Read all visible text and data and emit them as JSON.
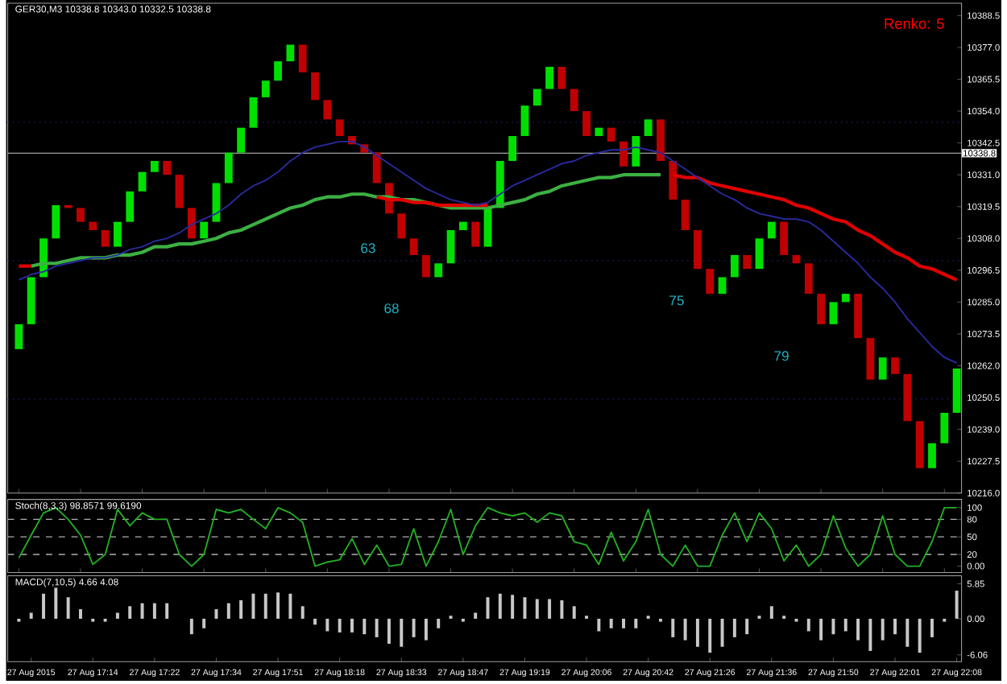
{
  "chart_data": [
    {
      "type": "bar",
      "title": "GER30,M3  10338.8 10343.0 10332.5 10338.8",
      "categories": [
        null,
        null,
        null,
        null,
        null,
        null,
        null,
        null,
        null,
        null,
        null,
        null,
        null,
        null,
        null,
        null,
        null,
        null,
        null,
        null,
        null,
        null,
        null,
        null,
        null,
        null,
        null,
        null,
        null,
        null,
        null,
        null,
        null,
        null,
        null,
        null,
        null,
        null,
        null,
        null,
        null,
        null,
        null,
        null,
        null,
        null,
        null,
        null,
        null,
        null,
        null,
        null,
        null,
        null,
        null,
        null,
        null,
        null,
        null,
        null,
        null,
        null,
        null,
        null,
        null,
        null,
        null,
        null,
        null,
        null,
        null,
        null,
        null,
        null,
        null,
        null,
        null
      ],
      "series": [
        {
          "type": "bar",
          "values": [
            9,
            17,
            14,
            12,
            -1,
            -5,
            -3,
            -6,
            9,
            11,
            7,
            4,
            -5,
            -12,
            -11,
            6,
            14,
            11,
            9,
            11,
            6,
            7,
            6,
            -10,
            -10,
            -7,
            -6,
            -3,
            -3,
            -11,
            -11,
            -9,
            -6,
            -8,
            5,
            12,
            3,
            -9,
            14,
            17,
            9,
            11,
            6,
            8,
            -8,
            -8,
            -9,
            3,
            -5,
            -9,
            11,
            6,
            -15,
            -14,
            -11,
            -14,
            -9,
            6,
            8,
            -5,
            11,
            6,
            -12,
            -3,
            -11,
            -11,
            8,
            3,
            -16,
            -15,
            8,
            -6,
            -17,
            -17,
            9,
            11,
            16
          ],
          "base": [
            10268,
            10277,
            10294,
            10308,
            10320,
            10319,
            10314,
            10311,
            10305,
            10314,
            10325,
            10332,
            10336,
            10331,
            10319,
            10308,
            10314,
            10328,
            10339,
            10348,
            10359,
            10365,
            10372,
            10378,
            10368,
            10358,
            10351,
            10345,
            10342,
            10339,
            10328,
            10317,
            10308,
            10302,
            10294,
            10299,
            10311,
            10314,
            10305,
            10319,
            10336,
            10345,
            10356,
            10362,
            10370,
            10362,
            10354,
            10345,
            10348,
            10343,
            10334,
            10345,
            10351,
            10336,
            10322,
            10311,
            10297,
            10288,
            10294,
            10302,
            10297,
            10308,
            10314,
            10302,
            10299,
            10288,
            10277,
            10285,
            10288,
            10272,
            10257,
            10265,
            10259,
            10242,
            10225,
            10234,
            10245
          ],
          "colors": [
            "#00e000",
            "#00e000",
            "#00e000",
            "#00e000",
            "#c00000",
            "#c00000",
            "#c00000",
            "#c00000",
            "#00e000",
            "#00e000",
            "#00e000",
            "#00e000",
            "#c00000",
            "#c00000",
            "#c00000",
            "#00e000",
            "#00e000",
            "#00e000",
            "#00e000",
            "#00e000",
            "#00e000",
            "#00e000",
            "#00e000",
            "#c00000",
            "#c00000",
            "#c00000",
            "#c00000",
            "#c00000",
            "#c00000",
            "#c00000",
            "#c00000",
            "#c00000",
            "#c00000",
            "#c00000",
            "#00e000",
            "#00e000",
            "#00e000",
            "#c00000",
            "#00e000",
            "#00e000",
            "#00e000",
            "#00e000",
            "#00e000",
            "#00e000",
            "#c00000",
            "#c00000",
            "#c00000",
            "#00e000",
            "#c00000",
            "#c00000",
            "#00e000",
            "#00e000",
            "#c00000",
            "#c00000",
            "#c00000",
            "#c00000",
            "#c00000",
            "#00e000",
            "#00e000",
            "#c00000",
            "#00e000",
            "#00e000",
            "#c00000",
            "#c00000",
            "#c00000",
            "#c00000",
            "#00e000",
            "#00e000",
            "#c00000",
            "#c00000",
            "#00e000",
            "#c00000",
            "#c00000",
            "#c00000",
            "#00e000",
            "#00e000",
            "#00e000"
          ]
        },
        {
          "type": "line",
          "color": "#3cb043",
          "values": [
            null,
            10298,
            10299,
            10299,
            10300,
            10301,
            10301,
            10301,
            10302,
            10302,
            10303,
            10305,
            10305,
            10306,
            10306,
            10307,
            10308,
            10310,
            10311,
            10313,
            10315,
            10317,
            10319,
            10320,
            10322,
            10323,
            10323,
            10324,
            10324,
            10323,
            10323,
            10322,
            10322,
            10321,
            10320,
            10319,
            10319,
            10319,
            10319,
            10320,
            10321,
            10322,
            10324,
            10325,
            10327,
            10328,
            10329,
            10330,
            10330,
            10331,
            10331,
            10331,
            10331,
            null,
            null,
            null,
            null,
            null,
            null,
            null,
            null,
            null,
            null,
            null,
            null,
            null,
            null,
            null,
            null,
            null,
            null,
            null,
            null,
            null,
            null,
            null,
            null
          ]
        },
        {
          "type": "line",
          "color": "#e00000",
          "values": [
            10298,
            10298,
            null,
            null,
            null,
            null,
            null,
            null,
            null,
            null,
            null,
            null,
            null,
            null,
            null,
            null,
            null,
            null,
            null,
            null,
            null,
            null,
            null,
            null,
            null,
            null,
            null,
            null,
            null,
            10323,
            10322,
            10322,
            10321,
            10321,
            10320,
            10320,
            10320,
            10320,
            10320,
            null,
            null,
            null,
            null,
            null,
            null,
            null,
            null,
            null,
            null,
            null,
            null,
            null,
            null,
            10331,
            10330,
            10330,
            10328,
            10327,
            10326,
            10325,
            10324,
            10323,
            10322,
            10320,
            10319,
            10317,
            10315,
            10314,
            10311,
            10309,
            10306,
            10303,
            10301,
            10298,
            10297,
            10295,
            10293
          ]
        },
        {
          "type": "line",
          "color": "#2a2aa0",
          "values": [
            10293,
            10295,
            10296,
            10298,
            10299,
            10300,
            10301,
            10301,
            10302,
            10304,
            10305,
            10307,
            10308,
            10310,
            10313,
            10315,
            10317,
            10320,
            10324,
            10327,
            10329,
            10332,
            10336,
            10339,
            10341,
            10342,
            10343,
            10343,
            10341,
            10338,
            10335,
            10332,
            10329,
            10326,
            10324,
            10322,
            10321,
            10320,
            10321,
            10324,
            10327,
            10329,
            10331,
            10333,
            10335,
            10336,
            10338,
            10339,
            10340,
            10340,
            10341,
            10340,
            10339,
            10336,
            10333,
            10330,
            10327,
            10324,
            10322,
            10319,
            10317,
            10316,
            10315,
            10315,
            10314,
            10311,
            10307,
            10303,
            10299,
            10294,
            10290,
            10285,
            10279,
            10274,
            10269,
            10265,
            10263
          ]
        }
      ],
      "ylim": [
        10216,
        10393
      ],
      "yticks": [
        {
          "value": 10388.5,
          "label": "10388.5"
        },
        {
          "value": 10377,
          "label": "10377.0"
        },
        {
          "value": 10365.5,
          "label": "10365.5"
        },
        {
          "value": 10354,
          "label": "10354.0"
        },
        {
          "value": 10342.5,
          "label": "10342.5"
        },
        {
          "value": 10331,
          "label": "10331.0"
        },
        {
          "value": 10319.5,
          "label": "10319.5"
        },
        {
          "value": 10308,
          "label": "10308.0"
        },
        {
          "value": 10296.5,
          "label": "10296.5"
        },
        {
          "value": 10285,
          "label": "10285.0"
        },
        {
          "value": 10273.5,
          "label": "10273.5"
        },
        {
          "value": 10262,
          "label": "10262.0"
        },
        {
          "value": 10250.5,
          "label": "10250.5"
        },
        {
          "value": 10239,
          "label": "10239.0"
        },
        {
          "value": 10227.5,
          "label": "10227.5"
        },
        {
          "value": 10216,
          "label": "10216.0"
        }
      ],
      "ref_lines": [
        {
          "axis": "y",
          "value": 10350,
          "color": "#24248c",
          "line_style": "dotted"
        },
        {
          "axis": "y",
          "value": 10300,
          "color": "#24248c",
          "line_style": "dotted"
        },
        {
          "axis": "y",
          "value": 10250,
          "color": "#24248c",
          "line_style": "dotted"
        },
        {
          "axis": "y",
          "value": 10338.8,
          "label": "10338.8",
          "color": "#a0a0a0",
          "line_style": "solid"
        }
      ],
      "annotations": [
        "Renko: 5",
        "63",
        "68",
        "75",
        "79"
      ],
      "tick_labels": "y"
    },
    {
      "type": "line",
      "title": "Stoch(8,3,3) 98.8571 99.6190",
      "categories": [
        null,
        null,
        null,
        null,
        null,
        null,
        null,
        null,
        null,
        null,
        null,
        null,
        null,
        null,
        null,
        null,
        null,
        null,
        null,
        null,
        null,
        null,
        null,
        null,
        null,
        null,
        null,
        null,
        null,
        null,
        null,
        null,
        null,
        null,
        null,
        null,
        null,
        null,
        null,
        null,
        null,
        null,
        null,
        null,
        null,
        null,
        null,
        null,
        null,
        null,
        null,
        null,
        null,
        null,
        null,
        null,
        null,
        null,
        null,
        null,
        null,
        null,
        null,
        null,
        null,
        null,
        null,
        null,
        null,
        null,
        null,
        null,
        null,
        null,
        null,
        null,
        null
      ],
      "series": [
        {
          "color": "#22b022",
          "values": [
            14,
            53,
            91,
            100,
            80,
            53,
            3,
            20,
            97,
            69,
            91,
            80,
            80,
            20,
            0,
            20,
            97,
            91,
            97,
            80,
            64,
            100,
            91,
            75,
            0,
            7,
            11,
            47,
            3,
            36,
            0,
            3,
            64,
            0,
            42,
            97,
            20,
            69,
            100,
            91,
            86,
            91,
            75,
            91,
            86,
            42,
            36,
            3,
            58,
            9,
            42,
            97,
            20,
            0,
            36,
            0,
            0,
            53,
            91,
            42,
            91,
            64,
            9,
            36,
            0,
            20,
            86,
            31,
            0,
            20,
            86,
            20,
            0,
            0,
            42,
            100,
            100
          ]
        }
      ],
      "ylim": [
        -11,
        114
      ],
      "yticks": [
        100,
        80,
        50,
        20,
        {
          "value": 0,
          "label": "0.00"
        }
      ],
      "ref_lines": [
        {
          "axis": "y",
          "value": 80,
          "color": "#b0b0b0",
          "line_style": "dashed"
        },
        {
          "axis": "y",
          "value": 50,
          "color": "#b0b0b0",
          "line_style": "dashed"
        },
        {
          "axis": "y",
          "value": 20,
          "color": "#b0b0b0",
          "line_style": "dashed"
        }
      ],
      "tick_labels": "y"
    },
    {
      "type": "bar",
      "title": "MACD(7,10,5) 4.66 4.08",
      "categories": [
        null,
        "27 Aug 2015",
        null,
        null,
        null,
        null,
        "27 Aug 17:14",
        null,
        null,
        null,
        null,
        "27 Aug 17:22",
        null,
        null,
        null,
        null,
        "27 Aug 17:34",
        null,
        null,
        null,
        null,
        "27 Aug 17:51",
        null,
        null,
        null,
        null,
        "27 Aug 18:18",
        null,
        null,
        null,
        null,
        "27 Aug 18:33",
        null,
        null,
        null,
        null,
        "27 Aug 18:47",
        null,
        null,
        null,
        null,
        "27 Aug 19:19",
        null,
        null,
        null,
        null,
        "27 Aug 20:06",
        null,
        null,
        null,
        null,
        "27 Aug 20:42",
        null,
        null,
        null,
        null,
        "27 Aug 21:26",
        null,
        null,
        null,
        null,
        "27 Aug 21:36",
        null,
        null,
        null,
        null,
        "27 Aug 21:50",
        null,
        null,
        null,
        null,
        "27 Aug 22:01",
        null,
        null,
        null,
        null,
        "27 Aug 22:08"
      ],
      "values": [
        -0.5,
        1.0,
        4.2,
        5.2,
        3.6,
        1.6,
        -0.5,
        -0.5,
        1.0,
        2.1,
        2.6,
        2.6,
        2.6,
        0,
        -2.6,
        -1.6,
        1.6,
        2.6,
        3.1,
        4.2,
        4.2,
        4.4,
        4.2,
        2.1,
        -1.0,
        -2.1,
        -2.3,
        -2.3,
        -2.6,
        -3.1,
        -4.2,
        -4.7,
        -3.1,
        -3.6,
        -1.6,
        0.5,
        -0.5,
        1.0,
        3.6,
        4.2,
        4.0,
        3.6,
        3.3,
        3.3,
        3.1,
        2.1,
        0.5,
        -2.1,
        -1.6,
        -1.6,
        -1.6,
        0.5,
        -0.5,
        -3.1,
        -3.6,
        -4.7,
        -5.7,
        -4.7,
        -3.1,
        -2.6,
        0.5,
        2.1,
        0.5,
        -0.5,
        -2.1,
        -3.6,
        -2.6,
        -2.1,
        -3.6,
        -5.4,
        -3.6,
        -2.6,
        -4.7,
        -5.7,
        -3.1,
        -0.5,
        4.7
      ],
      "color": "#c8c8c8",
      "ylim": [
        -7.2,
        7.2
      ],
      "yticks": [
        5.85,
        {
          "value": 0,
          "label": "0.00"
        },
        -6.06
      ]
    }
  ]
}
